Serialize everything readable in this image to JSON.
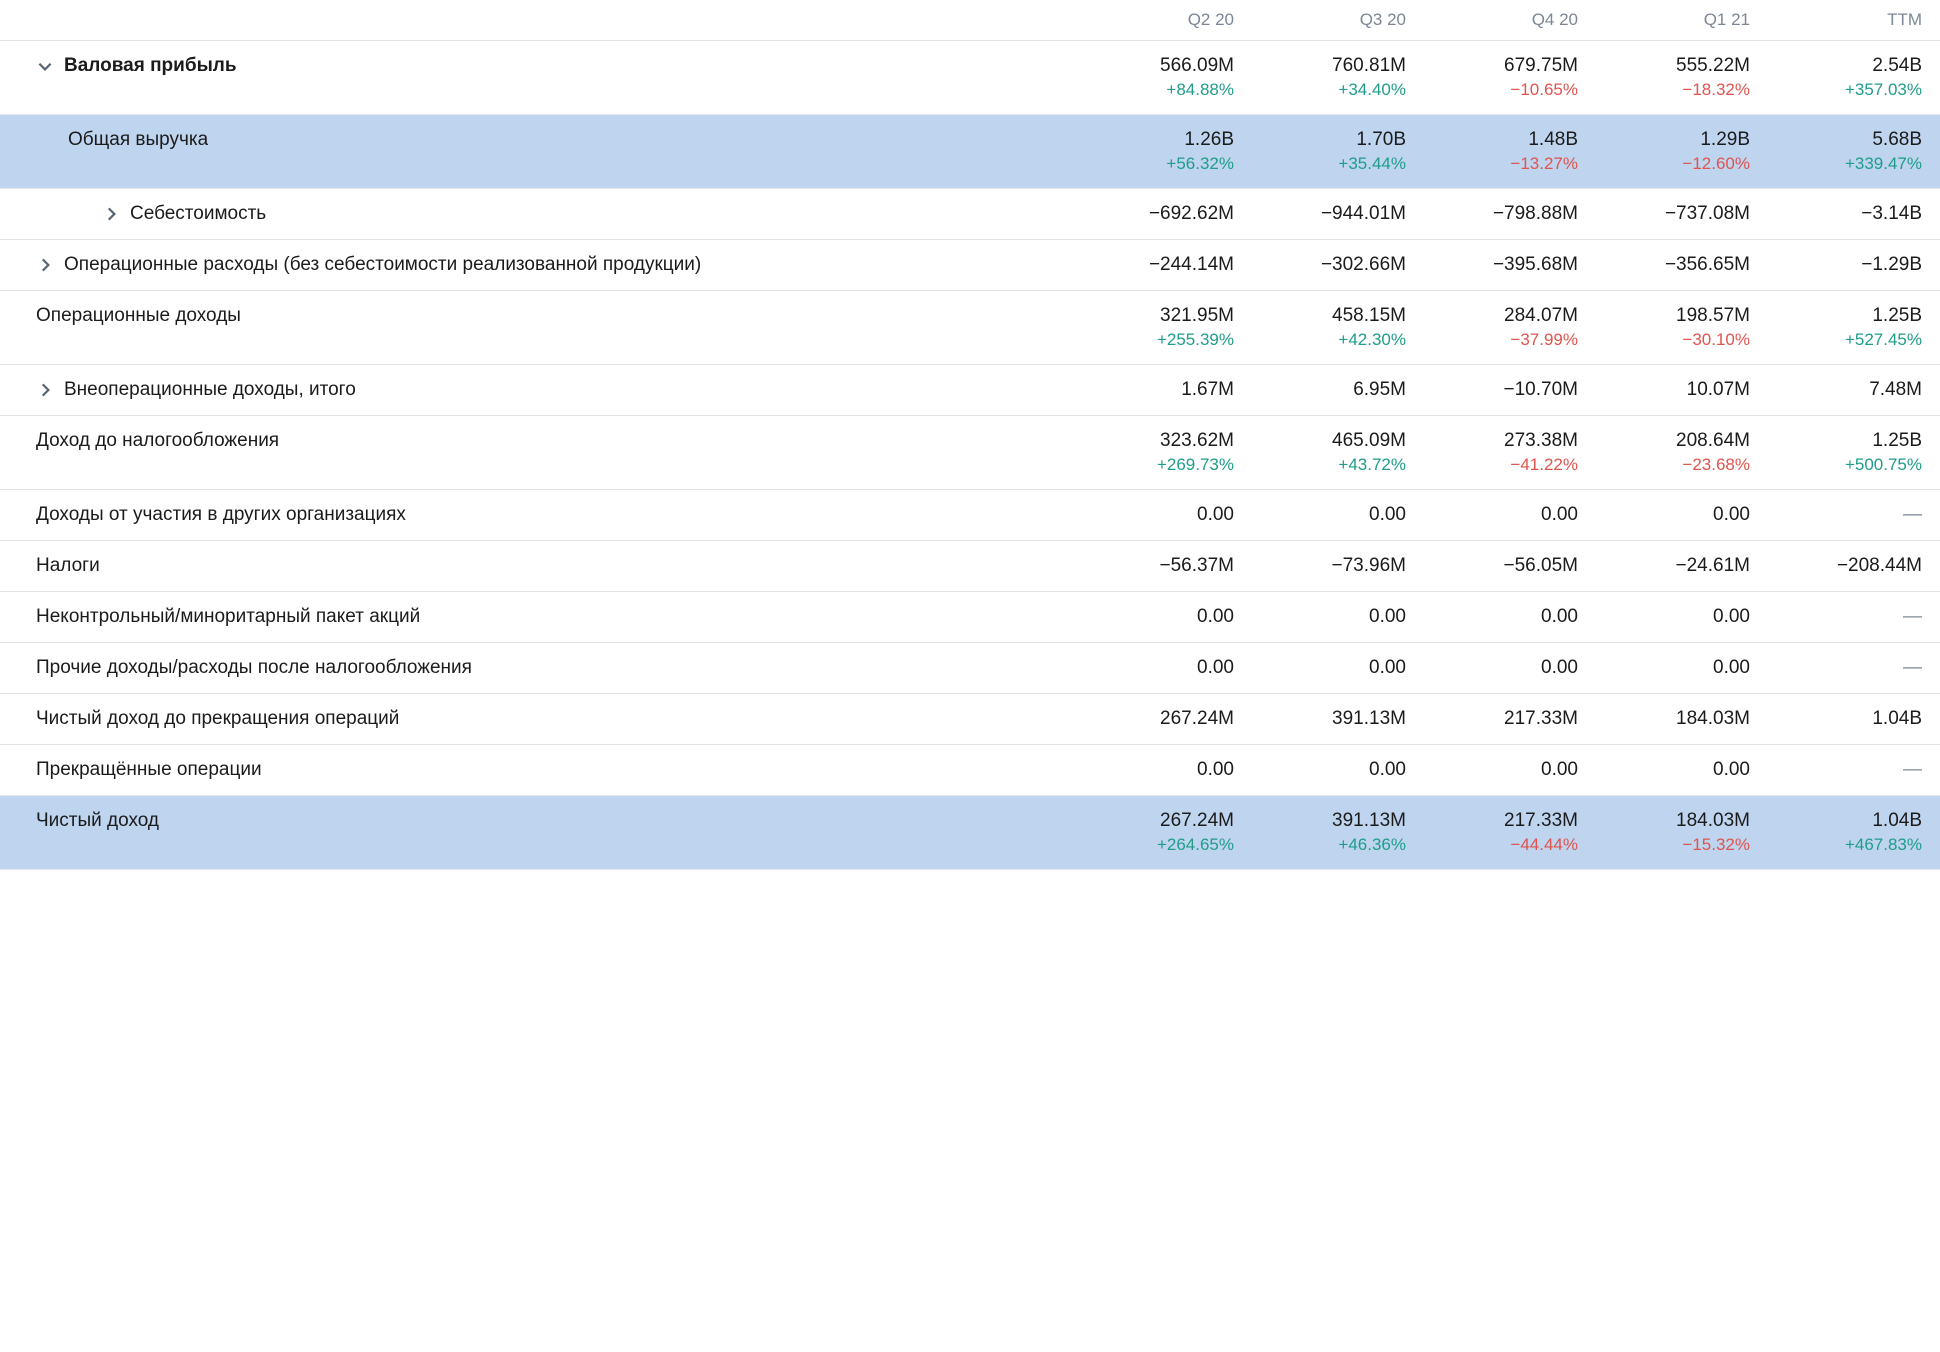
{
  "colors": {
    "text": "#1b1b1b",
    "muted": "#7d8794",
    "positive": "#1f9d8a",
    "negative": "#e0544e",
    "highlight_bg": "#bed4ef",
    "border": "#e0e3e8",
    "background": "#ffffff"
  },
  "columns": [
    "Q2 20",
    "Q3 20",
    "Q4 20",
    "Q1 21",
    "TTM"
  ],
  "rows": [
    {
      "label": "Валовая прибыль",
      "bold": true,
      "expand": "down",
      "indent": 0,
      "cells": [
        {
          "v": "566.09M",
          "p": "+84.88%",
          "s": "pos"
        },
        {
          "v": "760.81M",
          "p": "+34.40%",
          "s": "pos"
        },
        {
          "v": "679.75M",
          "p": "−10.65%",
          "s": "neg"
        },
        {
          "v": "555.22M",
          "p": "−18.32%",
          "s": "neg"
        },
        {
          "v": "2.54B",
          "p": "+357.03%",
          "s": "pos"
        }
      ]
    },
    {
      "label": "Общая выручка",
      "highlight": true,
      "indent": 1,
      "cells": [
        {
          "v": "1.26B",
          "p": "+56.32%",
          "s": "pos"
        },
        {
          "v": "1.70B",
          "p": "+35.44%",
          "s": "pos"
        },
        {
          "v": "1.48B",
          "p": "−13.27%",
          "s": "neg"
        },
        {
          "v": "1.29B",
          "p": "−12.60%",
          "s": "neg"
        },
        {
          "v": "5.68B",
          "p": "+339.47%",
          "s": "pos"
        }
      ]
    },
    {
      "label": "Себестоимость",
      "expand": "right",
      "indent": 2,
      "cells": [
        {
          "v": "−692.62M"
        },
        {
          "v": "−944.01M"
        },
        {
          "v": "−798.88M"
        },
        {
          "v": "−737.08M"
        },
        {
          "v": "−3.14B"
        }
      ]
    },
    {
      "label": "Операционные расходы (без себестоимости реализованной продукции)",
      "expand": "right",
      "indent": 0,
      "cells": [
        {
          "v": "−244.14M"
        },
        {
          "v": "−302.66M"
        },
        {
          "v": "−395.68M"
        },
        {
          "v": "−356.65M"
        },
        {
          "v": "−1.29B"
        }
      ]
    },
    {
      "label": "Операционные доходы",
      "indent": 0,
      "cells": [
        {
          "v": "321.95M",
          "p": "+255.39%",
          "s": "pos"
        },
        {
          "v": "458.15M",
          "p": "+42.30%",
          "s": "pos"
        },
        {
          "v": "284.07M",
          "p": "−37.99%",
          "s": "neg"
        },
        {
          "v": "198.57M",
          "p": "−30.10%",
          "s": "neg"
        },
        {
          "v": "1.25B",
          "p": "+527.45%",
          "s": "pos"
        }
      ]
    },
    {
      "label": "Внеоперационные доходы, итого",
      "expand": "right",
      "indent": 0,
      "cells": [
        {
          "v": "1.67M"
        },
        {
          "v": "6.95M"
        },
        {
          "v": "−10.70M"
        },
        {
          "v": "10.07M"
        },
        {
          "v": "7.48M"
        }
      ]
    },
    {
      "label": "Доход до налогообложения",
      "indent": 0,
      "cells": [
        {
          "v": "323.62M",
          "p": "+269.73%",
          "s": "pos"
        },
        {
          "v": "465.09M",
          "p": "+43.72%",
          "s": "pos"
        },
        {
          "v": "273.38M",
          "p": "−41.22%",
          "s": "neg"
        },
        {
          "v": "208.64M",
          "p": "−23.68%",
          "s": "neg"
        },
        {
          "v": "1.25B",
          "p": "+500.75%",
          "s": "pos"
        }
      ]
    },
    {
      "label": "Доходы от участия в других организациях",
      "indent": 0,
      "cells": [
        {
          "v": "0.00"
        },
        {
          "v": "0.00"
        },
        {
          "v": "0.00"
        },
        {
          "v": "0.00"
        },
        {
          "dash": true
        }
      ]
    },
    {
      "label": "Налоги",
      "indent": 0,
      "cells": [
        {
          "v": "−56.37M"
        },
        {
          "v": "−73.96M"
        },
        {
          "v": "−56.05M"
        },
        {
          "v": "−24.61M"
        },
        {
          "v": "−208.44M"
        }
      ]
    },
    {
      "label": "Неконтрольный/миноритарный пакет акций",
      "indent": 0,
      "cells": [
        {
          "v": "0.00"
        },
        {
          "v": "0.00"
        },
        {
          "v": "0.00"
        },
        {
          "v": "0.00"
        },
        {
          "dash": true
        }
      ]
    },
    {
      "label": "Прочие доходы/расходы после налогообложения",
      "indent": 0,
      "cells": [
        {
          "v": "0.00"
        },
        {
          "v": "0.00"
        },
        {
          "v": "0.00"
        },
        {
          "v": "0.00"
        },
        {
          "dash": true
        }
      ]
    },
    {
      "label": "Чистый доход до прекращения операций",
      "indent": 0,
      "cells": [
        {
          "v": "267.24M"
        },
        {
          "v": "391.13M"
        },
        {
          "v": "217.33M"
        },
        {
          "v": "184.03M"
        },
        {
          "v": "1.04B"
        }
      ]
    },
    {
      "label": "Прекращённые операции",
      "indent": 0,
      "cells": [
        {
          "v": "0.00"
        },
        {
          "v": "0.00"
        },
        {
          "v": "0.00"
        },
        {
          "v": "0.00"
        },
        {
          "dash": true
        }
      ]
    },
    {
      "label": "Чистый доход",
      "highlight": true,
      "indent": 0,
      "cells": [
        {
          "v": "267.24M",
          "p": "+264.65%",
          "s": "pos"
        },
        {
          "v": "391.13M",
          "p": "+46.36%",
          "s": "pos"
        },
        {
          "v": "217.33M",
          "p": "−44.44%",
          "s": "neg"
        },
        {
          "v": "184.03M",
          "p": "−15.32%",
          "s": "neg"
        },
        {
          "v": "1.04B",
          "p": "+467.83%",
          "s": "pos"
        }
      ]
    }
  ]
}
